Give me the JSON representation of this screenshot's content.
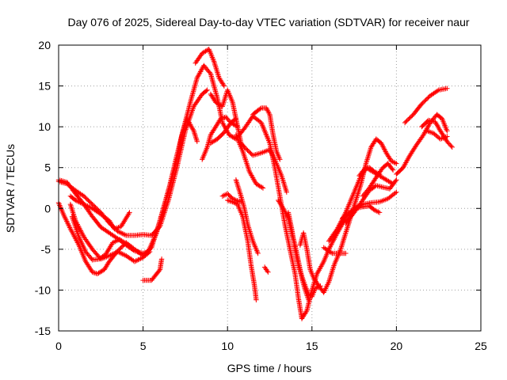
{
  "chart_data": {
    "type": "scatter",
    "title": "Day 076 of 2025, Sidereal Day-to-day VTEC variation (SDTVAR) for receiver naur",
    "xlabel": "GPS time / hours",
    "ylabel": "SDTVAR / TECUs",
    "xlim": [
      0,
      25
    ],
    "ylim": [
      -15,
      20
    ],
    "xticks": [
      0,
      5,
      10,
      15,
      20,
      25
    ],
    "yticks": [
      -15,
      -10,
      -5,
      0,
      5,
      10,
      15,
      20
    ],
    "grid": true,
    "marker": "plus",
    "color": "#ff0000",
    "series": [
      {
        "values": [
          [
            0,
            3.3
          ],
          [
            0.5,
            3
          ],
          [
            1,
            2.2
          ],
          [
            1.5,
            1.5
          ],
          [
            2,
            0.5
          ],
          [
            2.5,
            -0.5
          ],
          [
            3,
            -1.8
          ],
          [
            3.5,
            -2.8
          ],
          [
            4,
            -3.3
          ],
          [
            4.5,
            -3.3
          ],
          [
            5,
            -3.2
          ],
          [
            5.5,
            -3.3
          ],
          [
            6,
            -2.2
          ],
          [
            6.5,
            1
          ],
          [
            7,
            5
          ],
          [
            7.5,
            9.5
          ],
          [
            8,
            12.5
          ],
          [
            8.5,
            14
          ],
          [
            8.8,
            14.5
          ]
        ]
      },
      {
        "values": [
          [
            0,
            3.5
          ],
          [
            0.5,
            3.2
          ],
          [
            1,
            1.8
          ],
          [
            1.5,
            0.5
          ],
          [
            2,
            -1
          ],
          [
            2.5,
            -2.3
          ],
          [
            3,
            -3
          ],
          [
            3.5,
            -3.7
          ],
          [
            4,
            -4.5
          ],
          [
            4.5,
            -5.2
          ],
          [
            5,
            -5.5
          ],
          [
            5.3,
            -5.3
          ],
          [
            5.8,
            -3
          ],
          [
            6.2,
            0
          ],
          [
            6.6,
            3
          ],
          [
            7,
            6.5
          ],
          [
            7.4,
            9.8
          ],
          [
            7.8,
            13
          ],
          [
            8.2,
            16
          ],
          [
            8.6,
            17.5
          ],
          [
            9,
            16.5
          ],
          [
            9.4,
            13.5
          ],
          [
            9.7,
            10.5
          ],
          [
            10.1,
            9
          ],
          [
            10.5,
            8.5
          ],
          [
            11,
            9.8
          ],
          [
            11.5,
            11.3
          ],
          [
            12,
            10.5
          ],
          [
            12.5,
            8
          ],
          [
            12.8,
            5
          ],
          [
            13.1,
            1.5
          ],
          [
            13.4,
            -2
          ],
          [
            13.7,
            -5
          ],
          [
            14,
            -8
          ],
          [
            14.2,
            -11
          ],
          [
            14.4,
            -13.5
          ],
          [
            14.7,
            -12.5
          ],
          [
            15,
            -10
          ],
          [
            15.3,
            -8
          ],
          [
            15.7,
            -6.5
          ],
          [
            16,
            -5
          ],
          [
            16.5,
            -3
          ],
          [
            17,
            -1.2
          ],
          [
            17.5,
            0
          ],
          [
            18,
            0.5
          ],
          [
            18.5,
            0.7
          ],
          [
            19,
            0.8
          ],
          [
            19.5,
            1.2
          ],
          [
            20,
            2
          ]
        ]
      },
      {
        "values": [
          [
            0.7,
            1.5
          ],
          [
            1,
            1
          ],
          [
            1.5,
            0.5
          ],
          [
            2,
            0
          ],
          [
            2.5,
            -0.7
          ],
          [
            3,
            -1.5
          ],
          [
            3.3,
            -2.5
          ],
          [
            3.7,
            -2.2
          ],
          [
            4.2,
            -0.5
          ]
        ]
      },
      {
        "values": [
          [
            0.7,
            0.5
          ],
          [
            1,
            -1.5
          ],
          [
            1.5,
            -3.5
          ],
          [
            2,
            -5
          ],
          [
            2.5,
            -6.2
          ],
          [
            3,
            -5.8
          ],
          [
            3.5,
            -5.3
          ],
          [
            4,
            -5.8
          ],
          [
            4.5,
            -6.5
          ],
          [
            5,
            -6
          ],
          [
            5.4,
            -5.3
          ]
        ]
      },
      {
        "values": [
          [
            0,
            0.7
          ],
          [
            0.3,
            -0.8
          ],
          [
            0.7,
            -2.5
          ],
          [
            1.2,
            -4.5
          ],
          [
            1.6,
            -6.5
          ],
          [
            2,
            -7.8
          ],
          [
            2.3,
            -8
          ],
          [
            2.7,
            -7.5
          ],
          [
            3,
            -6.5
          ],
          [
            3.5,
            -5.2
          ],
          [
            4,
            -4.2
          ],
          [
            4.5,
            -5
          ],
          [
            5,
            -5.8
          ],
          [
            5.5,
            -4.8
          ],
          [
            6,
            -1.5
          ],
          [
            6.5,
            2
          ],
          [
            7,
            6
          ],
          [
            7.3,
            9
          ],
          [
            7.6,
            11
          ],
          [
            8,
            9.5
          ],
          [
            8.2,
            8.2
          ]
        ]
      },
      {
        "values": [
          [
            0.8,
            -1
          ],
          [
            1.2,
            -3.5
          ],
          [
            1.6,
            -5.3
          ],
          [
            2,
            -6.3
          ],
          [
            2.4,
            -6.2
          ],
          [
            2.8,
            -5.6
          ],
          [
            3.2,
            -4.2
          ],
          [
            3.6,
            -3.8
          ],
          [
            4,
            -4.3
          ],
          [
            4.4,
            -5
          ]
        ]
      },
      {
        "values": [
          [
            5,
            -8.8
          ],
          [
            5.5,
            -8.8
          ],
          [
            6,
            -7.5
          ],
          [
            6.1,
            -6.2
          ]
        ]
      },
      {
        "values": [
          [
            8.1,
            17.8
          ],
          [
            8.5,
            19
          ],
          [
            8.9,
            19.5
          ],
          [
            9.2,
            18
          ],
          [
            9.5,
            16
          ],
          [
            9.8,
            15
          ]
        ]
      },
      {
        "values": [
          [
            8.5,
            6
          ],
          [
            8.8,
            7.5
          ],
          [
            9,
            9
          ],
          [
            9.3,
            10
          ],
          [
            9.6,
            11
          ],
          [
            9.9,
            11.2
          ],
          [
            10.2,
            10.5
          ],
          [
            10.6,
            10
          ]
        ]
      },
      {
        "values": [
          [
            9,
            8
          ],
          [
            9.4,
            8.5
          ],
          [
            9.8,
            9.3
          ],
          [
            10.2,
            10.5
          ],
          [
            10.5,
            11
          ]
        ]
      },
      {
        "values": [
          [
            9,
            14
          ],
          [
            9.3,
            13
          ],
          [
            9.7,
            12.5
          ],
          [
            10,
            14.5
          ],
          [
            10.3,
            13
          ],
          [
            10.5,
            11
          ],
          [
            10.8,
            8
          ],
          [
            11,
            7.5
          ],
          [
            11.5,
            6.5
          ],
          [
            12,
            6.8
          ],
          [
            12.5,
            7.2
          ],
          [
            12.8,
            6
          ],
          [
            13,
            5
          ],
          [
            13.2,
            4
          ],
          [
            13.5,
            2
          ]
        ]
      },
      {
        "values": [
          [
            9.7,
            1.5
          ],
          [
            10,
            1.8
          ],
          [
            10.3,
            1.2
          ],
          [
            10.5,
            1
          ],
          [
            10.8,
            0.8
          ]
        ]
      },
      {
        "values": [
          [
            10,
            1
          ],
          [
            10.3,
            0.8
          ],
          [
            10.6,
            0.5
          ],
          [
            10.9,
            -1
          ],
          [
            11.2,
            -4
          ],
          [
            11.4,
            -7
          ],
          [
            11.6,
            -9.5
          ],
          [
            11.7,
            -11.2
          ]
        ]
      },
      {
        "values": [
          [
            10.5,
            3.5
          ],
          [
            10.8,
            1.5
          ],
          [
            11,
            0
          ],
          [
            11.2,
            -2
          ],
          [
            11.5,
            -4
          ],
          [
            11.8,
            -5.5
          ]
        ]
      },
      {
        "values": [
          [
            10.5,
            9
          ],
          [
            10.9,
            7
          ],
          [
            11.3,
            4.5
          ],
          [
            11.7,
            3
          ],
          [
            12.1,
            2.5
          ]
        ]
      },
      {
        "values": [
          [
            11.5,
            11.5
          ],
          [
            11.8,
            12
          ],
          [
            12,
            12.3
          ],
          [
            12.3,
            12.3
          ],
          [
            12.5,
            11.5
          ],
          [
            12.7,
            9
          ],
          [
            12.9,
            7
          ],
          [
            13.1,
            6
          ]
        ]
      },
      {
        "values": [
          [
            12.2,
            -7.2
          ],
          [
            12.4,
            -7.8
          ]
        ]
      },
      {
        "values": [
          [
            13,
            1
          ],
          [
            13.3,
            0
          ],
          [
            13.6,
            -1.2
          ],
          [
            13.8,
            -3
          ],
          [
            14,
            -4.5
          ],
          [
            14.2,
            -6.5
          ],
          [
            14.4,
            -8.5
          ],
          [
            14.6,
            -10
          ],
          [
            14.8,
            -11.2
          ]
        ]
      },
      {
        "values": [
          [
            13.6,
            -0.5
          ],
          [
            13.8,
            -2.5
          ],
          [
            14,
            -5
          ],
          [
            14.2,
            -7
          ],
          [
            14.4,
            -8.3
          ],
          [
            14.6,
            -9.5
          ],
          [
            14.8,
            -10.5
          ],
          [
            15,
            -10.8
          ],
          [
            15.2,
            -9.8
          ],
          [
            15.5,
            -9.5
          ]
        ]
      },
      {
        "values": [
          [
            14.3,
            -4.5
          ],
          [
            14.5,
            -3
          ],
          [
            14.7,
            -5
          ],
          [
            14.9,
            -7.5
          ],
          [
            15.1,
            -8.5
          ],
          [
            15.4,
            -9.5
          ],
          [
            15.7,
            -10.3
          ],
          [
            16,
            -9
          ],
          [
            16.3,
            -7
          ],
          [
            16.7,
            -5
          ],
          [
            17,
            -3
          ],
          [
            17.3,
            -1
          ],
          [
            17.6,
            1
          ],
          [
            17.9,
            3
          ],
          [
            18.2,
            5.5
          ],
          [
            18.5,
            7.5
          ],
          [
            18.8,
            8.5
          ],
          [
            19.1,
            8
          ],
          [
            19.4,
            6.8
          ],
          [
            19.7,
            5.8
          ],
          [
            20,
            5.5
          ]
        ]
      },
      {
        "values": [
          [
            15.7,
            -4.8
          ],
          [
            16.2,
            -5.5
          ],
          [
            16.6,
            -5.5
          ],
          [
            17,
            -5.5
          ]
        ]
      },
      {
        "values": [
          [
            16,
            -4
          ],
          [
            16.5,
            -2.5
          ],
          [
            17,
            -0.5
          ],
          [
            17.5,
            2
          ],
          [
            17.9,
            4
          ],
          [
            18.2,
            5
          ],
          [
            18.6,
            4.5
          ],
          [
            19,
            4
          ],
          [
            19.4,
            3.5
          ],
          [
            19.8,
            3
          ]
        ]
      },
      {
        "values": [
          [
            16.8,
            -1.2
          ],
          [
            17.2,
            -0.5
          ],
          [
            17.6,
            0
          ],
          [
            18,
            0.2
          ],
          [
            18.4,
            0.3
          ],
          [
            18.7,
            -0.2
          ],
          [
            19,
            -0.5
          ]
        ]
      },
      {
        "values": [
          [
            17,
            -1.8
          ],
          [
            17.5,
            -0.5
          ],
          [
            18,
            1
          ],
          [
            18.4,
            2.2
          ],
          [
            18.8,
            2.8
          ],
          [
            19.2,
            2.6
          ],
          [
            19.6,
            2.4
          ],
          [
            20,
            3.5
          ]
        ]
      },
      {
        "values": [
          [
            17.8,
            4
          ],
          [
            18.1,
            4.8
          ],
          [
            18.4,
            5
          ],
          [
            18.7,
            4.5
          ],
          [
            19,
            4.2
          ]
        ]
      },
      {
        "values": [
          [
            18,
            1.5
          ],
          [
            18.4,
            2.5
          ],
          [
            18.8,
            3.8
          ],
          [
            19.2,
            5
          ],
          [
            19.5,
            5.5
          ],
          [
            19.8,
            4.7
          ]
        ]
      },
      {
        "values": [
          [
            20,
            4.2
          ],
          [
            20.4,
            5
          ],
          [
            20.8,
            6.5
          ],
          [
            21.2,
            7.8
          ],
          [
            21.6,
            9
          ],
          [
            22,
            10.5
          ],
          [
            22.4,
            11.5
          ],
          [
            22.7,
            11
          ],
          [
            23,
            9.5
          ]
        ]
      },
      {
        "values": [
          [
            20.5,
            10.5
          ],
          [
            21,
            11.5
          ],
          [
            21.5,
            12.8
          ],
          [
            22,
            13.8
          ],
          [
            22.5,
            14.5
          ],
          [
            23,
            14.7
          ]
        ]
      },
      {
        "values": [
          [
            21.5,
            10
          ],
          [
            21.9,
            10.8
          ],
          [
            22.3,
            10.6
          ],
          [
            22.6,
            9.5
          ],
          [
            23,
            8.2
          ],
          [
            23.3,
            7.5
          ]
        ]
      },
      {
        "values": [
          [
            21.8,
            9.5
          ],
          [
            22.2,
            9.2
          ],
          [
            22.6,
            8.5
          ],
          [
            23,
            8.8
          ]
        ]
      }
    ]
  }
}
